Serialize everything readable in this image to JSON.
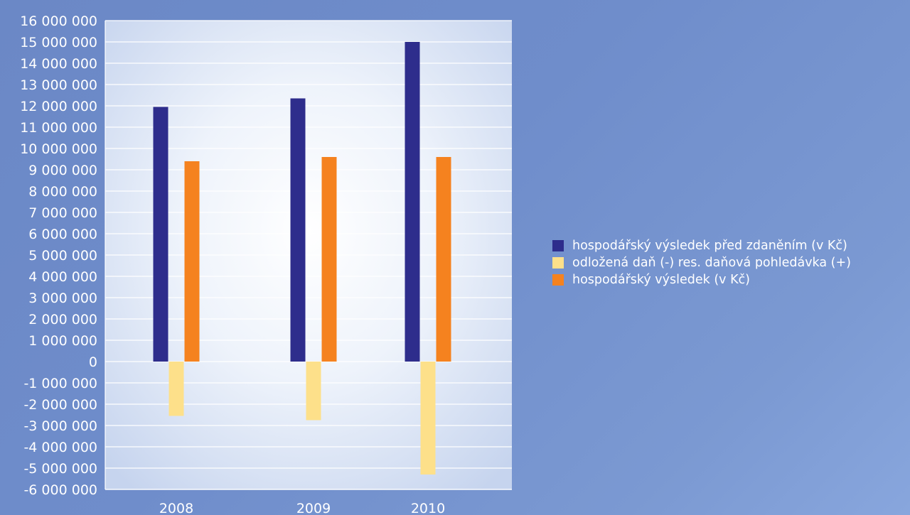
{
  "chart_data": {
    "type": "bar",
    "categories": [
      "2008",
      "2009",
      "2010"
    ],
    "series": [
      {
        "name": "hospodářský výsledek před zdaněním (v Kč)",
        "color": "#2e2d8c",
        "values": [
          11950000,
          12350000,
          15000000
        ]
      },
      {
        "name": "odložená daň (-) res. daňová pohledávka (+)",
        "color": "#fde08a",
        "values": [
          -2550000,
          -2750000,
          -5300000
        ]
      },
      {
        "name": "hospodářský výsledek (v Kč)",
        "color": "#f5821f",
        "values": [
          9400000,
          9600000,
          9600000
        ]
      }
    ],
    "ylim": [
      -6000000,
      16000000
    ],
    "yticks": [
      16000000,
      15000000,
      14000000,
      13000000,
      12000000,
      11000000,
      10000000,
      9000000,
      8000000,
      7000000,
      6000000,
      5000000,
      4000000,
      3000000,
      2000000,
      1000000,
      0,
      -1000000,
      -2000000,
      -3000000,
      -4000000,
      -5000000,
      -6000000
    ],
    "ytick_labels": [
      "16 000 000",
      "15 000 000",
      "14 000 000",
      "13 000 000",
      "12 000 000",
      "11 000 000",
      "10 000 000",
      "9 000 000",
      "8 000 000",
      "7 000 000",
      "6 000 000",
      "5 000 000",
      "4 000 000",
      "3 000 000",
      "2 000 000",
      "1 000 000",
      "0",
      "-1 000 000",
      "-2 000 000",
      "-3 000 000",
      "-4 000 000",
      "-5 000 000",
      "-6 000 000"
    ],
    "grid": true,
    "legend": "right",
    "title": "",
    "xlabel": "",
    "ylabel": ""
  }
}
